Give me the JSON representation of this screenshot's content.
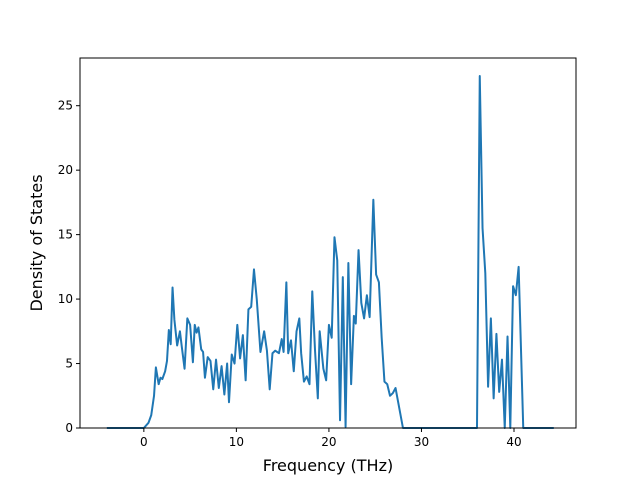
{
  "chart_data": {
    "type": "line",
    "title": "",
    "xlabel": "Frequency (THz)",
    "ylabel": "Density of States",
    "xlim": [
      -6.9,
      46.7
    ],
    "ylim": [
      0,
      28.7
    ],
    "xticks": [
      0,
      10,
      20,
      30,
      40
    ],
    "yticks": [
      0,
      5,
      10,
      15,
      20,
      25
    ],
    "grid": false,
    "line_color": "#1f77b4",
    "series": [
      {
        "x": [
          -4.0,
          -3.0,
          -2.0,
          -1.0,
          0.0,
          0.5,
          0.8,
          1.1,
          1.3,
          1.6,
          1.8,
          2.0,
          2.3,
          2.5,
          2.7,
          2.9,
          3.1,
          3.3,
          3.6,
          3.9,
          4.1,
          4.4,
          4.7,
          5.0,
          5.3,
          5.5,
          5.7,
          5.9,
          6.2,
          6.4,
          6.6,
          6.9,
          7.2,
          7.5,
          7.8,
          8.1,
          8.4,
          8.7,
          9.0,
          9.2,
          9.5,
          9.8,
          10.1,
          10.4,
          10.7,
          11.0,
          11.3,
          11.6,
          11.9,
          12.2,
          12.6,
          13.0,
          13.3,
          13.6,
          13.9,
          14.2,
          14.6,
          14.9,
          15.1,
          15.4,
          15.6,
          15.9,
          16.2,
          16.5,
          16.8,
          17.0,
          17.3,
          17.6,
          17.9,
          18.2,
          18.5,
          18.8,
          19.0,
          19.4,
          19.7,
          20.0,
          20.3,
          20.6,
          20.9,
          21.2,
          21.5,
          21.8,
          22.1,
          22.4,
          22.7,
          22.9,
          23.2,
          23.5,
          23.8,
          24.1,
          24.4,
          24.8,
          25.1,
          25.4,
          25.7,
          26.0,
          26.3,
          26.6,
          26.9,
          27.2,
          28.0,
          30.0,
          32.0,
          34.0,
          36.0,
          36.3,
          36.6,
          36.9,
          37.2,
          37.5,
          37.8,
          38.1,
          38.4,
          38.7,
          39.0,
          39.3,
          39.6,
          39.9,
          40.2,
          40.5,
          41.0,
          42.0,
          43.0,
          44.3
        ],
        "y": [
          0,
          0,
          0,
          0,
          0,
          0.4,
          1.0,
          2.5,
          4.7,
          3.4,
          3.9,
          3.8,
          4.4,
          5.2,
          7.6,
          6.5,
          10.9,
          8.4,
          6.4,
          7.5,
          6.3,
          4.6,
          8.5,
          8.0,
          5.1,
          8.0,
          7.4,
          7.8,
          6.1,
          5.9,
          3.9,
          5.5,
          5.2,
          3.0,
          5.3,
          3.1,
          4.8,
          2.6,
          5.0,
          2.0,
          5.7,
          5.0,
          8.0,
          5.4,
          7.2,
          3.7,
          9.2,
          9.4,
          12.3,
          10.0,
          5.9,
          7.5,
          6.0,
          3.0,
          5.8,
          6.0,
          5.8,
          6.9,
          5.9,
          11.3,
          5.8,
          6.8,
          4.4,
          7.5,
          8.5,
          5.8,
          3.6,
          4.0,
          3.4,
          10.6,
          6.0,
          2.3,
          7.5,
          4.6,
          3.7,
          8.0,
          7.0,
          14.8,
          13.0,
          0.6,
          11.7,
          0.1,
          12.8,
          3.4,
          8.7,
          8.1,
          13.8,
          9.7,
          8.5,
          10.3,
          8.6,
          17.7,
          11.9,
          11.3,
          7.0,
          3.6,
          3.4,
          2.5,
          2.7,
          3.1,
          0,
          0,
          0,
          0,
          0,
          27.3,
          15.5,
          12.0,
          3.2,
          8.5,
          2.3,
          7.3,
          2.8,
          5.3,
          0,
          7.1,
          0,
          11.0,
          10.3,
          12.5,
          0,
          0,
          0,
          0
        ]
      }
    ]
  }
}
